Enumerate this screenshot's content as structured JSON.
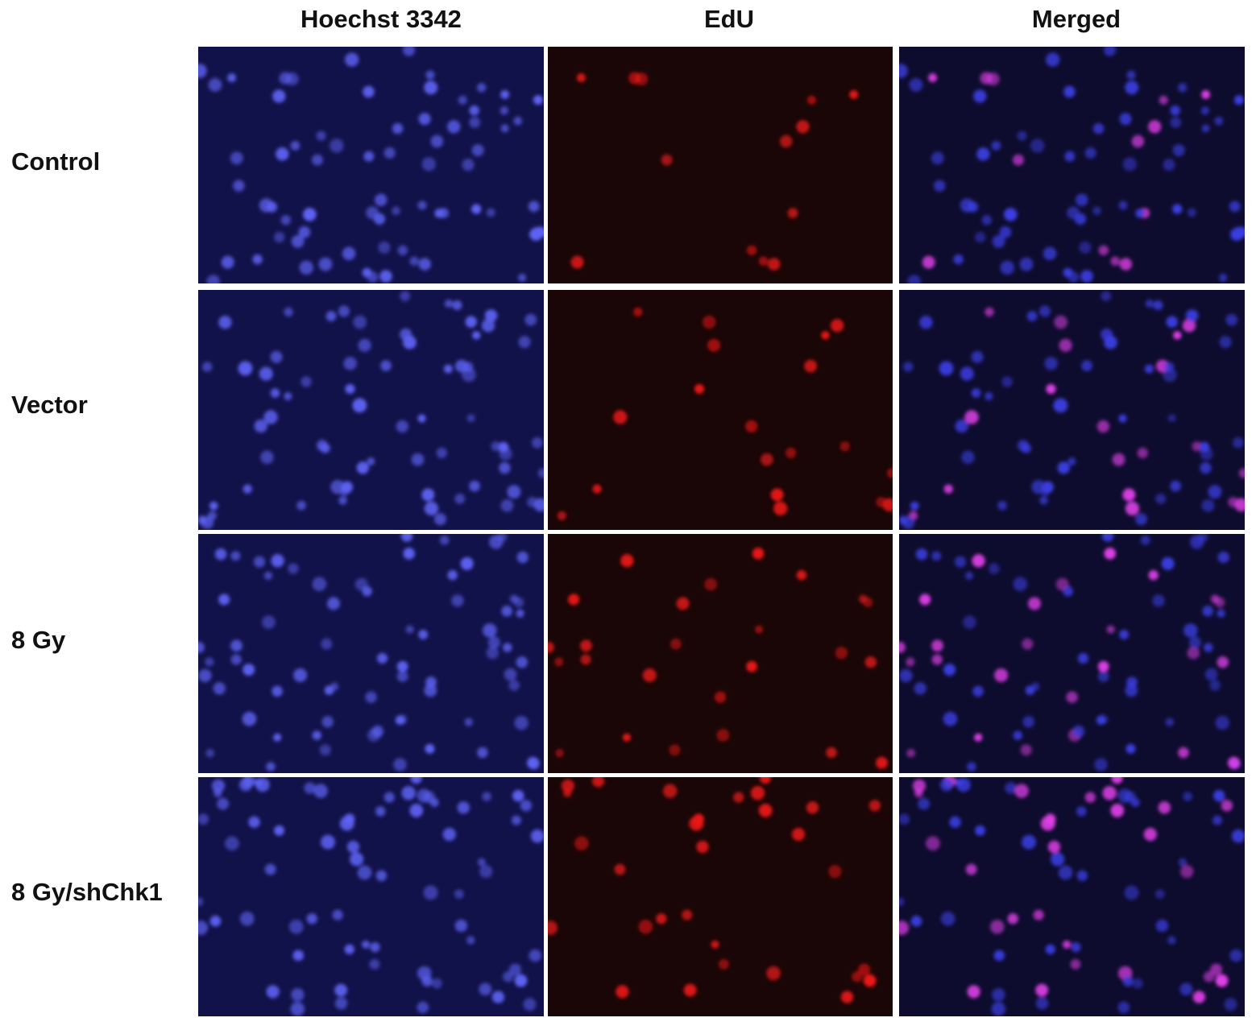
{
  "columns": [
    "Hoechst 3342",
    "EdU",
    "Merged"
  ],
  "rows": [
    "Control",
    "Vector",
    "8 Gy",
    "8 Gy/shChk1"
  ]
}
